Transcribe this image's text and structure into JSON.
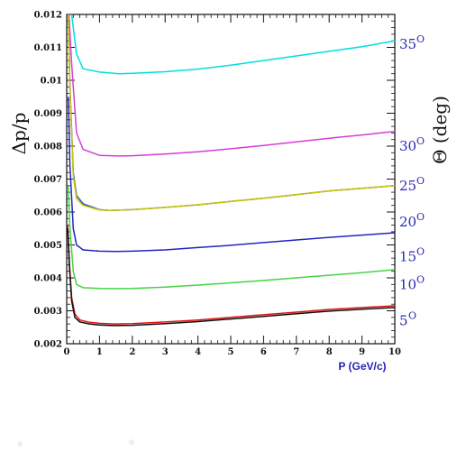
{
  "chart_data": {
    "type": "line",
    "title": "",
    "xlabel": "P (GeV/c)",
    "ylabel": "Δp/p",
    "y2label": "Θ (deg)",
    "xlim": [
      0,
      10
    ],
    "ylim": [
      0.002,
      0.012
    ],
    "xticks": [
      "0",
      "1",
      "2",
      "3",
      "4",
      "5",
      "6",
      "7",
      "8",
      "9",
      "10"
    ],
    "yticks": [
      "0.002",
      "0.003",
      "0.004",
      "0.005",
      "0.006",
      "0.007",
      "0.008",
      "0.009",
      "0.01",
      "0.011",
      "0.012"
    ],
    "angle_labels": [
      {
        "num": "35",
        "sup": "O",
        "value": 35
      },
      {
        "num": "30",
        "sup": "O",
        "value": 30
      },
      {
        "num": "25",
        "sup": "O",
        "value": 25
      },
      {
        "num": "20",
        "sup": "O",
        "value": 20
      },
      {
        "num": "15",
        "sup": "O",
        "value": 15
      },
      {
        "num": "10",
        "sup": "O",
        "value": 10
      },
      {
        "num": "5",
        "sup": "O",
        "value": 5
      }
    ],
    "angle_label_y": [
      0.0111,
      0.008,
      0.0068,
      0.0057,
      0.00465,
      0.0038,
      0.0027
    ],
    "grid": false,
    "legend": "none",
    "series": [
      {
        "color": "#00e0e0",
        "min_x": 1.6,
        "min_y": 0.0102,
        "end_y": 0.0112,
        "x": [
          0.15,
          0.2,
          0.3,
          0.5,
          1,
          1.6,
          2,
          3,
          4,
          5,
          6,
          7,
          8,
          9,
          10
        ],
        "y": [
          0.012,
          0.0116,
          0.0108,
          0.01035,
          0.01025,
          0.0102,
          0.01021,
          0.01026,
          0.01034,
          0.01046,
          0.0106,
          0.01074,
          0.01088,
          0.01102,
          0.0112
        ]
      },
      {
        "color": "#d83cd8",
        "min_x": 1.6,
        "min_y": 0.0077,
        "end_y": 0.00845,
        "x": [
          0.07,
          0.15,
          0.3,
          0.5,
          1,
          1.6,
          2,
          3,
          4,
          5,
          6,
          7,
          8,
          9,
          10
        ],
        "y": [
          0.012,
          0.0105,
          0.0084,
          0.0079,
          0.00772,
          0.0077,
          0.00771,
          0.00776,
          0.00783,
          0.00792,
          0.00802,
          0.00813,
          0.00824,
          0.00834,
          0.00845
        ]
      },
      {
        "color": "#2a4fb0",
        "min_x": 1.3,
        "min_y": 0.00605,
        "end_y": 0.0068,
        "x": [
          0.05,
          0.1,
          0.2,
          0.3,
          0.5,
          1,
          1.3,
          2,
          3,
          4,
          5,
          6,
          7,
          8,
          9,
          10
        ],
        "y": [
          0.012,
          0.0098,
          0.0072,
          0.0065,
          0.00625,
          0.00607,
          0.00605,
          0.00607,
          0.00614,
          0.00622,
          0.00632,
          0.00642,
          0.00653,
          0.00664,
          0.00672,
          0.0068
        ]
      },
      {
        "color": "#c8c800",
        "min_x": 1.3,
        "min_y": 0.00605,
        "end_y": 0.0068,
        "x": [
          0.05,
          0.1,
          0.2,
          0.3,
          0.5,
          1,
          1.3,
          2,
          3,
          4,
          5,
          6,
          7,
          8,
          9,
          10
        ],
        "y": [
          0.012,
          0.0097,
          0.0071,
          0.0064,
          0.0062,
          0.00606,
          0.00605,
          0.00607,
          0.00614,
          0.00622,
          0.00632,
          0.00642,
          0.00653,
          0.00664,
          0.00672,
          0.0068
        ]
      },
      {
        "color": "#2424c0",
        "min_x": 1.5,
        "min_y": 0.0048,
        "end_y": 0.00537,
        "x": [
          0.05,
          0.1,
          0.2,
          0.3,
          0.5,
          1,
          1.5,
          2,
          3,
          4,
          5,
          6,
          7,
          8,
          9,
          10
        ],
        "y": [
          0.0095,
          0.0074,
          0.0055,
          0.005,
          0.00485,
          0.00481,
          0.0048,
          0.00481,
          0.00485,
          0.00492,
          0.00499,
          0.00507,
          0.00515,
          0.00523,
          0.0053,
          0.00537
        ]
      },
      {
        "color": "#44d444",
        "min_x": 1.5,
        "min_y": 0.00367,
        "end_y": 0.00425,
        "x": [
          0.05,
          0.1,
          0.2,
          0.3,
          0.5,
          1,
          1.5,
          2,
          3,
          4,
          5,
          6,
          7,
          8,
          9,
          10
        ],
        "y": [
          0.0068,
          0.0055,
          0.0042,
          0.0038,
          0.0037,
          0.00368,
          0.00367,
          0.00368,
          0.00372,
          0.00378,
          0.00385,
          0.00392,
          0.004,
          0.00408,
          0.00416,
          0.00425
        ]
      },
      {
        "color": "#e01010",
        "min_x": 1.4,
        "min_y": 0.0026,
        "end_y": 0.00315,
        "x": [
          0.03,
          0.08,
          0.15,
          0.25,
          0.4,
          0.7,
          1,
          1.4,
          2,
          3,
          4,
          5,
          6,
          7,
          8,
          9,
          10
        ],
        "y": [
          0.0056,
          0.0045,
          0.0034,
          0.0029,
          0.00272,
          0.00265,
          0.00262,
          0.0026,
          0.00261,
          0.00266,
          0.00272,
          0.0028,
          0.00288,
          0.00296,
          0.00304,
          0.0031,
          0.00315
        ]
      },
      {
        "color": "#101010",
        "min_x": 1.4,
        "min_y": 0.00255,
        "end_y": 0.0031,
        "x": [
          0.03,
          0.08,
          0.15,
          0.25,
          0.4,
          0.7,
          1,
          1.4,
          2,
          3,
          4,
          5,
          6,
          7,
          8,
          9,
          10
        ],
        "y": [
          0.0055,
          0.0044,
          0.0033,
          0.0028,
          0.00266,
          0.0026,
          0.00257,
          0.00255,
          0.00256,
          0.00261,
          0.00267,
          0.00275,
          0.00283,
          0.00291,
          0.00299,
          0.00305,
          0.0031
        ]
      }
    ]
  }
}
